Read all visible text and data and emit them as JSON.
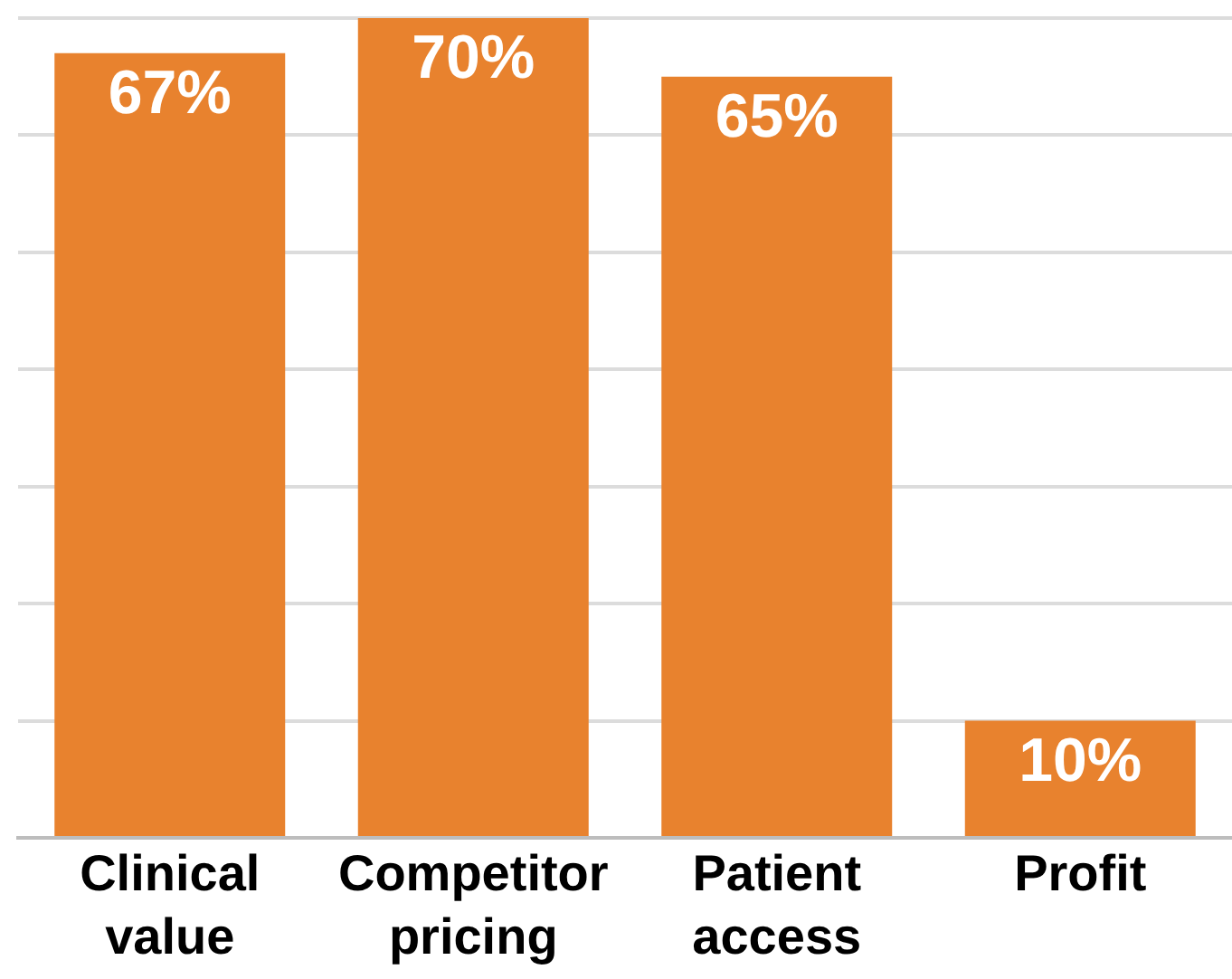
{
  "chart_data": {
    "type": "bar",
    "categories": [
      "Clinical value",
      "Competitor pricing",
      "Patient access",
      "Profit"
    ],
    "values": [
      67,
      70,
      65,
      10
    ],
    "color": "#e8822e",
    "value_labels": [
      "67%",
      "70%",
      "65%",
      "10%"
    ],
    "ylim": [
      0,
      70
    ],
    "yticks": [
      {
        "value": 0,
        "label": null
      },
      {
        "value": 10,
        "label": null
      },
      {
        "value": 20,
        "label": null
      },
      {
        "value": 30,
        "label": null
      },
      {
        "value": 40,
        "label": null
      },
      {
        "value": 50,
        "label": null
      },
      {
        "value": 60,
        "label": null
      },
      {
        "value": 70,
        "label": null
      }
    ],
    "grid": "y",
    "tick_labels": "x"
  }
}
